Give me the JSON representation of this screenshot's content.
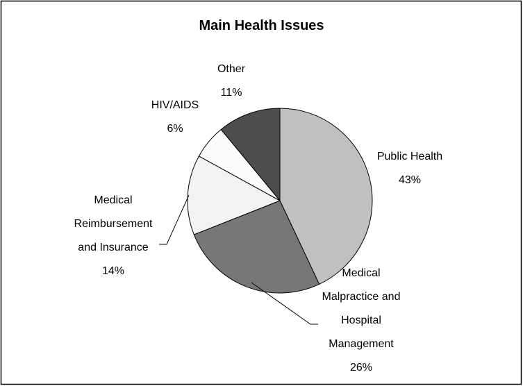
{
  "chart_data": {
    "type": "pie",
    "title": "Main Health Issues",
    "categories": [
      "Public Health",
      "Medical Malpractice and Hospital Management",
      "Medical Reimbursement and Insurance",
      "HIV/AIDS",
      "Other"
    ],
    "values": [
      43,
      26,
      14,
      6,
      11
    ],
    "value_labels": [
      "43%",
      "26%",
      "14%",
      "6%",
      "11%"
    ],
    "colors": [
      "#c0c0c0",
      "#777777",
      "#f2f2f2",
      "#fbfbfb",
      "#4d4d4d"
    ]
  }
}
